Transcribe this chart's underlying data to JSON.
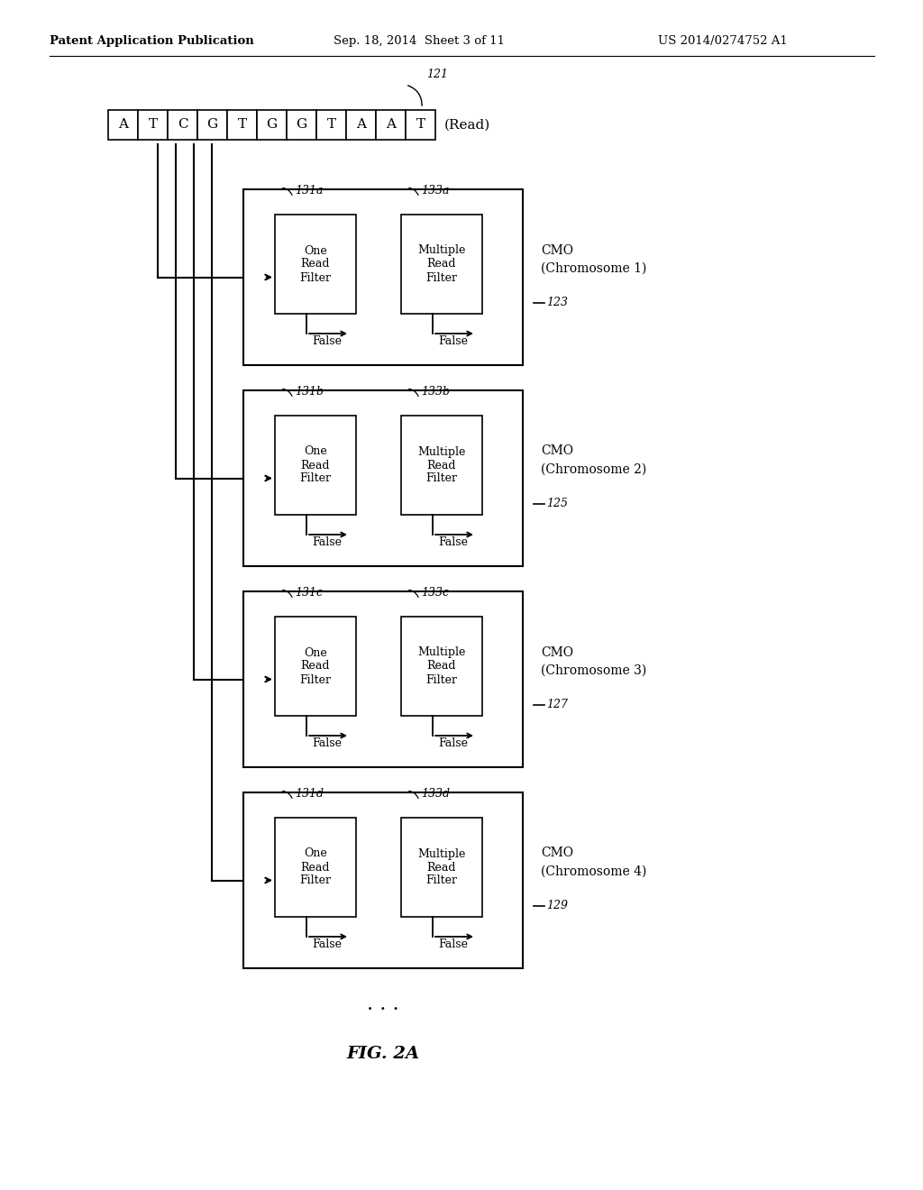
{
  "title_left": "Patent Application Publication",
  "title_mid": "Sep. 18, 2014  Sheet 3 of 11",
  "title_right": "US 2014/0274752 A1",
  "fig_label": "FIG. 2A",
  "read_label": "121",
  "read_sequence": [
    "A",
    "T",
    "C",
    "G",
    "T",
    "G",
    "G",
    "T",
    "A",
    "A",
    "T"
  ],
  "read_text": "(Read)",
  "cmos": [
    {
      "label": "123",
      "chr_num": "1",
      "filter1_label": "131a",
      "filter2_label": "133a"
    },
    {
      "label": "125",
      "chr_num": "2",
      "filter1_label": "131b",
      "filter2_label": "133b"
    },
    {
      "label": "127",
      "chr_num": "3",
      "filter1_label": "131c",
      "filter2_label": "133c"
    },
    {
      "label": "129",
      "chr_num": "4",
      "filter1_label": "131d",
      "filter2_label": "133d"
    }
  ],
  "background_color": "#ffffff",
  "line_color": "#000000",
  "text_color": "#000000"
}
